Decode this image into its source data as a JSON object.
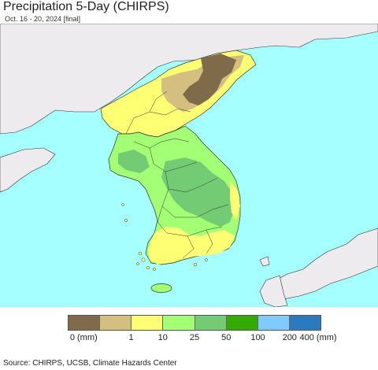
{
  "title": "Precipitation 5-Day (CHIRPS)",
  "subtitle": "Oct. 16 - 20, 2024 [final]",
  "legend": {
    "unit": "(mm)",
    "colors": [
      "#7f6a4a",
      "#d4be80",
      "#ffff73",
      "#a3ff73",
      "#73cc73",
      "#33aa00",
      "#80caff",
      "#2a7abf"
    ],
    "tick_labels": [
      "0 (mm)",
      "1",
      "10",
      "25",
      "50",
      "100",
      "200",
      "400 (mm)"
    ]
  },
  "source": "Source: CHIRPS, UCSB, Climate Hazards Center",
  "colors": {
    "sea": "#a5ffff",
    "land_outside": "#eeebee",
    "borders": "#333333"
  }
}
